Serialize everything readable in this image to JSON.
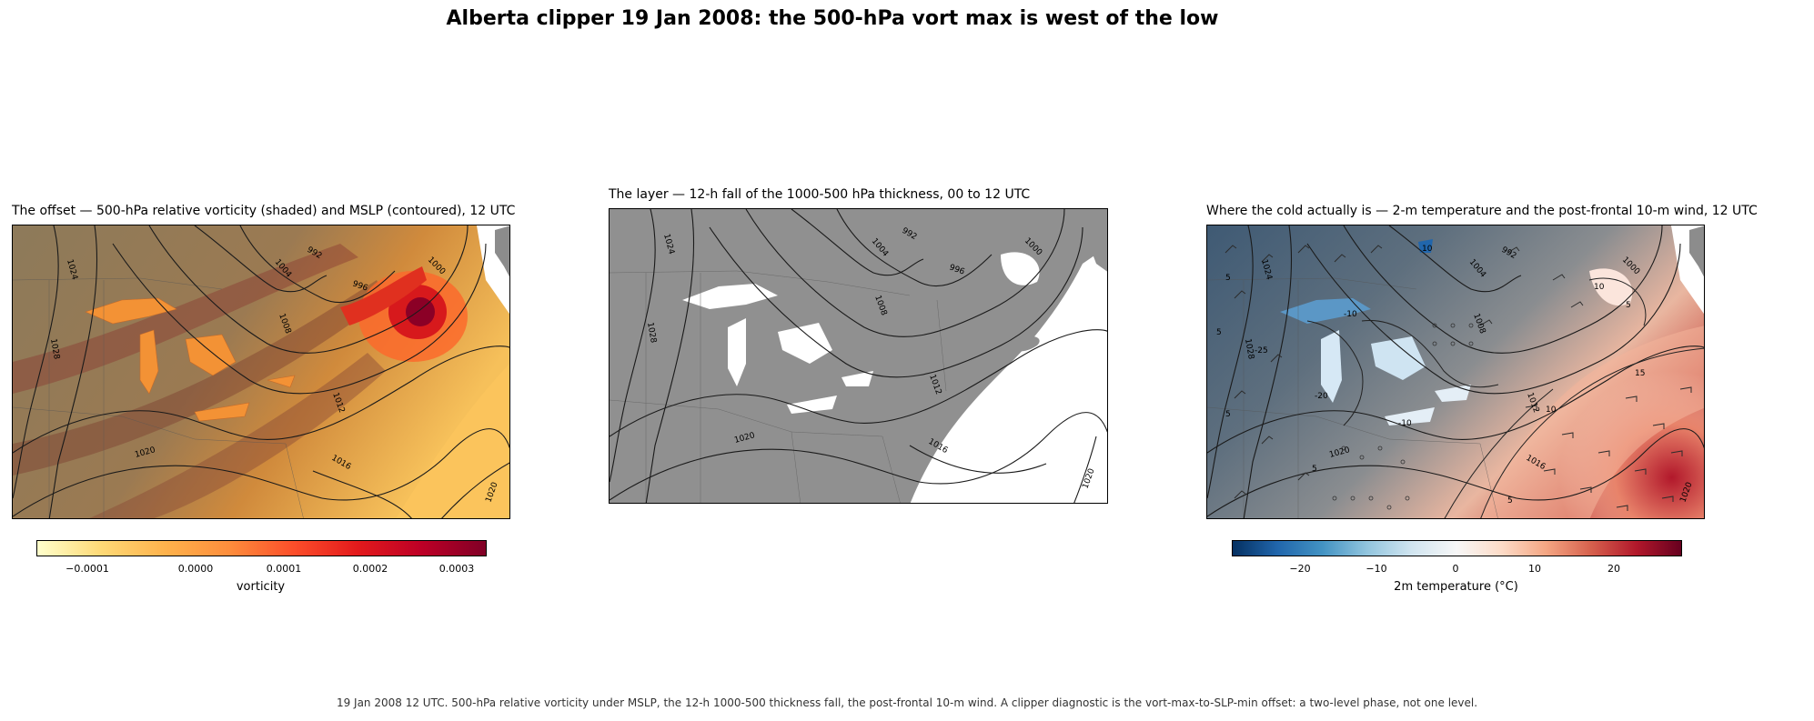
{
  "suptitle": "Alberta clipper 19 Jan 2008: the 500-hPa vort max is west of the low",
  "panels": [
    {
      "title": "The offset — 500-hPa relative vorticity (shaded) and MSLP (contoured), 12 UTC",
      "mslp_labels": [
        "1024",
        "1028",
        "1004",
        "992",
        "996",
        "1000",
        "1008",
        "1012",
        "1020",
        "1016",
        "1020"
      ],
      "colorbar": {
        "label": "vorticity",
        "ticks": [
          "−0.0001",
          "0.0000",
          "0.0001",
          "0.0002",
          "0.0003"
        ],
        "cmap": [
          "#ffffcc",
          "#fed976",
          "#feb24c",
          "#fd8d3c",
          "#fc4e2a",
          "#e31a1c",
          "#bd0026",
          "#800026"
        ]
      }
    },
    {
      "title": "The layer — 12-h fall of the 1000-500 hPa thickness, 00 to 12 UTC",
      "mslp_labels": [
        "1024",
        "1028",
        "1004",
        "992",
        "996",
        "1000",
        "1008",
        "1012",
        "1020",
        "1016",
        "1020"
      ]
    },
    {
      "title": "Where the cold actually is — 2-m temperature and the post-frontal 10-m wind, 12 UTC",
      "mslp_labels": [
        "1024",
        "1028",
        "1004",
        "992",
        "1000",
        "1008",
        "1012",
        "1020",
        "1016",
        "1020"
      ],
      "temp_labels": [
        "10",
        "5",
        "5",
        "5",
        "-10",
        "-20",
        "-25",
        "-10",
        "10",
        "5",
        "15",
        "10",
        "5",
        "5"
      ],
      "colorbar": {
        "label": "2m temperature (°C)",
        "ticks": [
          "−20",
          "−10",
          "0",
          "10",
          "20"
        ],
        "cmap": [
          "#053061",
          "#2166ac",
          "#4393c3",
          "#92c5de",
          "#d1e5f0",
          "#f7f7f7",
          "#fddbc7",
          "#f4a582",
          "#d6604d",
          "#b2182b",
          "#67001f"
        ]
      }
    }
  ],
  "caption": "19 Jan 2008 12 UTC. 500-hPa relative vorticity under MSLP, the 12-h 1000-500 thickness fall, the post-frontal 10-m wind. A clipper diagnostic is the vort-max-to-SLP-min offset: a two-level phase, not one level.",
  "colors": {
    "land_gray": "#909090",
    "ocean": "#ffffff",
    "contour": "#1a1a1a",
    "border": "#6e6e6e"
  }
}
